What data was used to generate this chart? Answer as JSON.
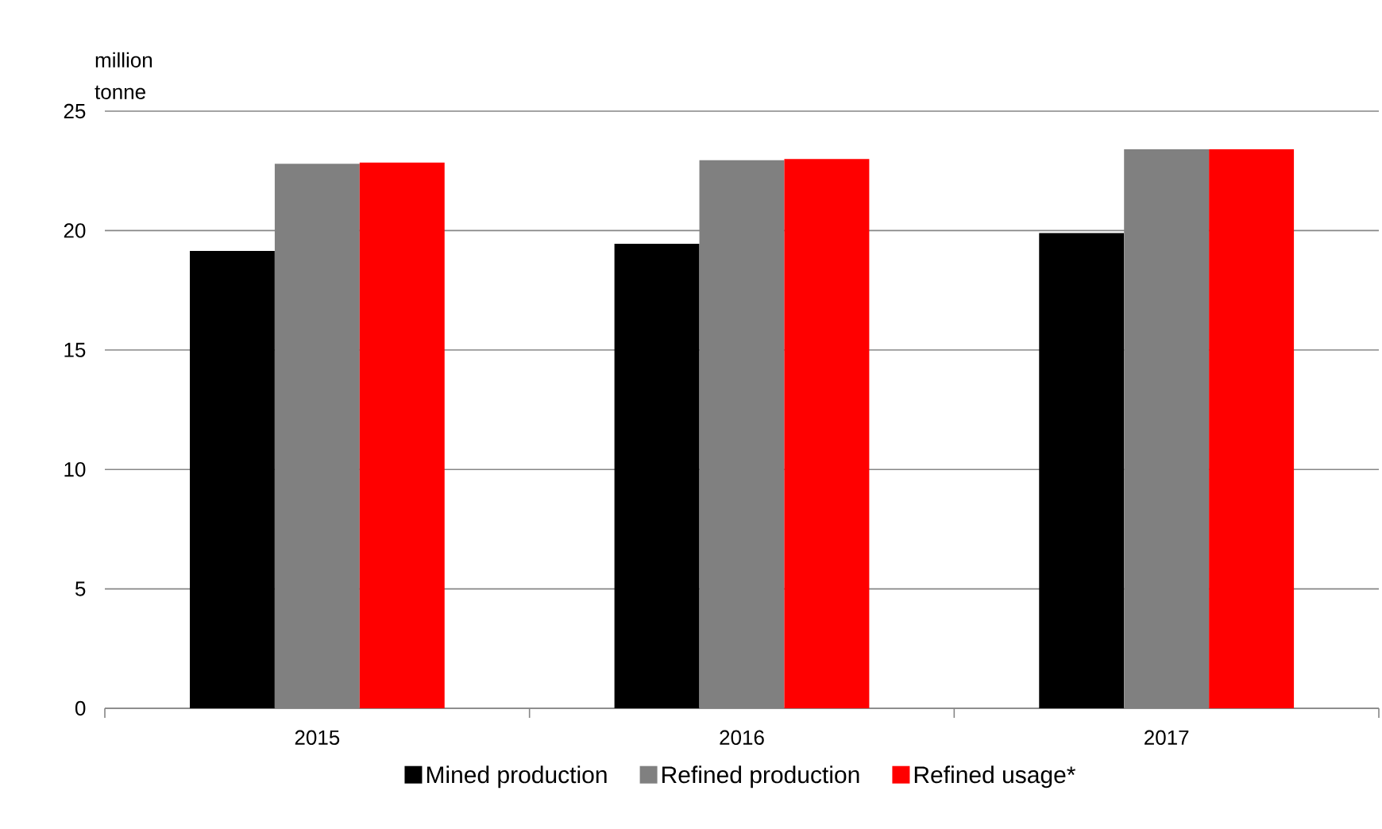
{
  "chart_data": {
    "type": "bar",
    "ylabel": "million tonne",
    "categories": [
      "2015",
      "2016",
      "2017"
    ],
    "series": [
      {
        "name": "Mined production",
        "color": "#000000",
        "values": [
          19.15,
          19.45,
          19.9
        ]
      },
      {
        "name": "Refined production",
        "color": "#808080",
        "values": [
          22.8,
          22.95,
          23.4
        ]
      },
      {
        "name": "Refined usage*",
        "color": "#ff0000",
        "values": [
          22.85,
          23.0,
          23.4
        ]
      }
    ],
    "ylim": [
      0,
      25
    ],
    "yticks": [
      0,
      5,
      10,
      15,
      20,
      25
    ],
    "grid": "y",
    "legend": "bottom"
  }
}
